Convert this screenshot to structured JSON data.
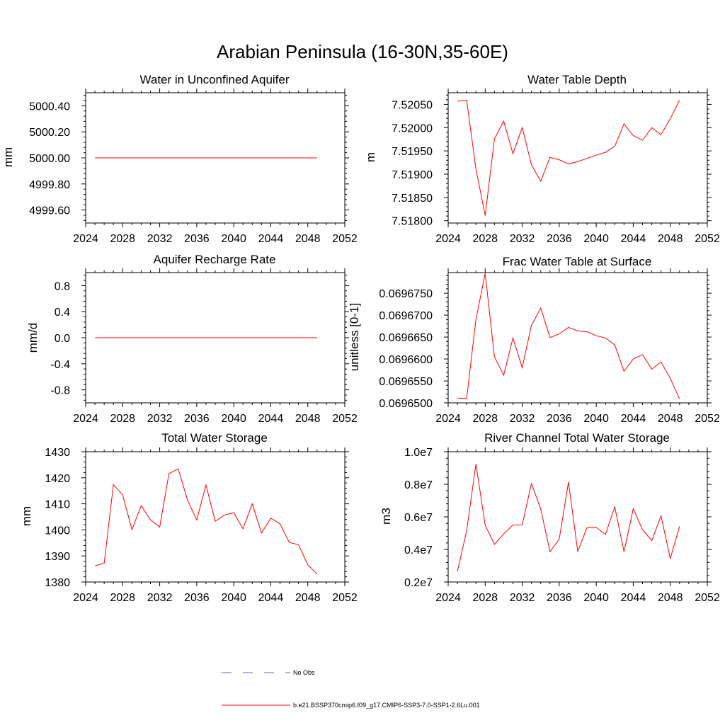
{
  "figure_title": "Arabian Peninsula (16-30N,35-60E)",
  "series_color": "#ff0000",
  "obs_color": "#5566bb",
  "legend": {
    "obs_label": "No Obs",
    "model_label": "b.e21.BSSP370cmip6.f09_g17.CMIP6-SSP3-7.0-SSP1-2.6Lu.001"
  },
  "chart_data": [
    {
      "type": "line",
      "title": "Water in Unconfined Aquifer",
      "ylabel": "mm",
      "xlim": [
        2024,
        2052
      ],
      "ylim": [
        4999.5,
        5000.5
      ],
      "xticks": [
        2024,
        2028,
        2032,
        2036,
        2040,
        2044,
        2048,
        2052
      ],
      "yticks": [
        4999.6,
        4999.8,
        5000.0,
        5000.2,
        5000.4
      ],
      "ytick_labels": [
        "4999.60",
        "4999.80",
        "5000.00",
        "5000.20",
        "5000.40"
      ],
      "x": [
        2025,
        2026,
        2027,
        2028,
        2029,
        2030,
        2031,
        2032,
        2033,
        2034,
        2035,
        2036,
        2037,
        2038,
        2039,
        2040,
        2041,
        2042,
        2043,
        2044,
        2045,
        2046,
        2047,
        2048,
        2049
      ],
      "series": [
        {
          "values": [
            5000,
            5000,
            5000,
            5000,
            5000,
            5000,
            5000,
            5000,
            5000,
            5000,
            5000,
            5000,
            5000,
            5000,
            5000,
            5000,
            5000,
            5000,
            5000,
            5000,
            5000,
            5000,
            5000,
            5000,
            5000
          ]
        }
      ]
    },
    {
      "type": "line",
      "title": "Water Table Depth",
      "ylabel": "m",
      "xlim": [
        2024,
        2052
      ],
      "ylim": [
        7.51795,
        7.52075
      ],
      "xticks": [
        2024,
        2028,
        2032,
        2036,
        2040,
        2044,
        2048,
        2052
      ],
      "yticks": [
        7.518,
        7.5185,
        7.519,
        7.5195,
        7.52,
        7.5205
      ],
      "ytick_labels": [
        "7.51800",
        "7.51850",
        "7.51900",
        "7.51950",
        "7.52000",
        "7.52050"
      ],
      "x": [
        2025,
        2026,
        2027,
        2028,
        2029,
        2030,
        2031,
        2032,
        2033,
        2034,
        2035,
        2036,
        2037,
        2038,
        2039,
        2040,
        2041,
        2042,
        2043,
        2044,
        2045,
        2046,
        2047,
        2048,
        2049
      ],
      "series": [
        {
          "values": [
            7.52057,
            7.52059,
            7.51911,
            7.51811,
            7.51976,
            7.52014,
            7.51944,
            7.52,
            7.5192,
            7.51885,
            7.51936,
            7.51931,
            7.51922,
            7.51927,
            7.51934,
            7.51941,
            7.51947,
            7.5196,
            7.52008,
            7.51983,
            7.51973,
            7.52,
            7.51985,
            7.52019,
            7.52059
          ]
        }
      ]
    },
    {
      "type": "line",
      "title": "Aquifer Recharge Rate",
      "ylabel": "mm/d",
      "xlim": [
        2024,
        2052
      ],
      "ylim": [
        -1.0,
        1.0
      ],
      "xticks": [
        2024,
        2028,
        2032,
        2036,
        2040,
        2044,
        2048,
        2052
      ],
      "yticks": [
        -0.8,
        -0.4,
        0.0,
        0.4,
        0.8
      ],
      "ytick_labels": [
        "-0.8",
        "-0.4",
        "0.0",
        "0.4",
        "0.8"
      ],
      "x": [
        2025,
        2026,
        2027,
        2028,
        2029,
        2030,
        2031,
        2032,
        2033,
        2034,
        2035,
        2036,
        2037,
        2038,
        2039,
        2040,
        2041,
        2042,
        2043,
        2044,
        2045,
        2046,
        2047,
        2048,
        2049
      ],
      "series": [
        {
          "values": [
            0,
            0,
            0,
            0,
            0,
            0,
            0,
            0,
            0,
            0,
            0,
            0,
            0,
            0,
            0,
            0,
            0,
            0,
            0,
            0,
            0,
            0,
            0,
            0,
            0
          ]
        }
      ]
    },
    {
      "type": "line",
      "title": "Frac Water Table at Surface",
      "ylabel": "unitless [0-1]",
      "xlim": [
        2024,
        2052
      ],
      "ylim": [
        0.06965,
        0.0696797
      ],
      "xticks": [
        2024,
        2028,
        2032,
        2036,
        2040,
        2044,
        2048,
        2052
      ],
      "yticks": [
        0.06965,
        0.069655,
        0.06966,
        0.069665,
        0.06967,
        0.069675
      ],
      "ytick_labels": [
        "0.0696500",
        "0.0696550",
        "0.0696600",
        "0.0696650",
        "0.0696700",
        "0.0696750"
      ],
      "x": [
        2025,
        2026,
        2027,
        2028,
        2029,
        2030,
        2031,
        2032,
        2033,
        2034,
        2035,
        2036,
        2037,
        2038,
        2039,
        2040,
        2041,
        2042,
        2043,
        2044,
        2045,
        2046,
        2047,
        2048,
        2049
      ],
      "series": [
        {
          "values": [
            0.0696511,
            0.069651,
            0.069669,
            0.0696795,
            0.0696605,
            0.0696563,
            0.0696648,
            0.069658,
            0.0696677,
            0.0696716,
            0.0696649,
            0.0696657,
            0.0696672,
            0.0696664,
            0.0696662,
            0.0696653,
            0.0696648,
            0.0696632,
            0.0696572,
            0.06966,
            0.069661,
            0.0696577,
            0.0696593,
            0.0696556,
            0.0696509
          ]
        }
      ]
    },
    {
      "type": "line",
      "title": "Total Water Storage",
      "ylabel": "mm",
      "xlim": [
        2024,
        2052
      ],
      "ylim": [
        1380,
        1430
      ],
      "xticks": [
        2024,
        2028,
        2032,
        2036,
        2040,
        2044,
        2048,
        2052
      ],
      "yticks": [
        1380,
        1390,
        1400,
        1410,
        1420,
        1430
      ],
      "ytick_labels": [
        "1380",
        "1390",
        "1400",
        "1410",
        "1420",
        "1430"
      ],
      "x": [
        2025,
        2026,
        2027,
        2028,
        2029,
        2030,
        2031,
        2032,
        2033,
        2034,
        2035,
        2036,
        2037,
        2038,
        2039,
        2040,
        2041,
        2042,
        2043,
        2044,
        2045,
        2046,
        2047,
        2048,
        2049
      ],
      "series": [
        {
          "values": [
            1386.2,
            1387.2,
            1417.4,
            1413.4,
            1400.1,
            1409.3,
            1403.8,
            1401.1,
            1421.6,
            1423.4,
            1411.5,
            1403.8,
            1417.2,
            1403.3,
            1405.7,
            1406.6,
            1400.4,
            1410.0,
            1398.8,
            1404.5,
            1402.3,
            1395.2,
            1394.3,
            1386.6,
            1383.0
          ]
        }
      ]
    },
    {
      "type": "line",
      "title": "River Channel Total Water Storage",
      "ylabel": "m3",
      "xlim": [
        2024,
        2052
      ],
      "ylim": [
        2000000,
        10000000
      ],
      "xticks": [
        2024,
        2028,
        2032,
        2036,
        2040,
        2044,
        2048,
        2052
      ],
      "yticks": [
        2000000,
        4000000,
        6000000,
        8000000,
        10000000
      ],
      "ytick_labels": [
        "0.2e7",
        "0.4e7",
        "0.6e7",
        "0.8e7",
        "1.0e7"
      ],
      "x": [
        2025,
        2026,
        2027,
        2028,
        2029,
        2030,
        2031,
        2032,
        2033,
        2034,
        2035,
        2036,
        2037,
        2038,
        2039,
        2040,
        2041,
        2042,
        2043,
        2044,
        2045,
        2046,
        2047,
        2048,
        2049
      ],
      "series": [
        {
          "values": [
            2650000,
            5150000,
            9250000,
            5480000,
            4310000,
            4960000,
            5500000,
            5500000,
            8050000,
            6480000,
            3860000,
            4630000,
            8140000,
            3880000,
            5330000,
            5350000,
            4920000,
            6620000,
            3860000,
            6500000,
            5210000,
            4540000,
            6060000,
            3430000,
            5420000
          ]
        }
      ]
    }
  ]
}
